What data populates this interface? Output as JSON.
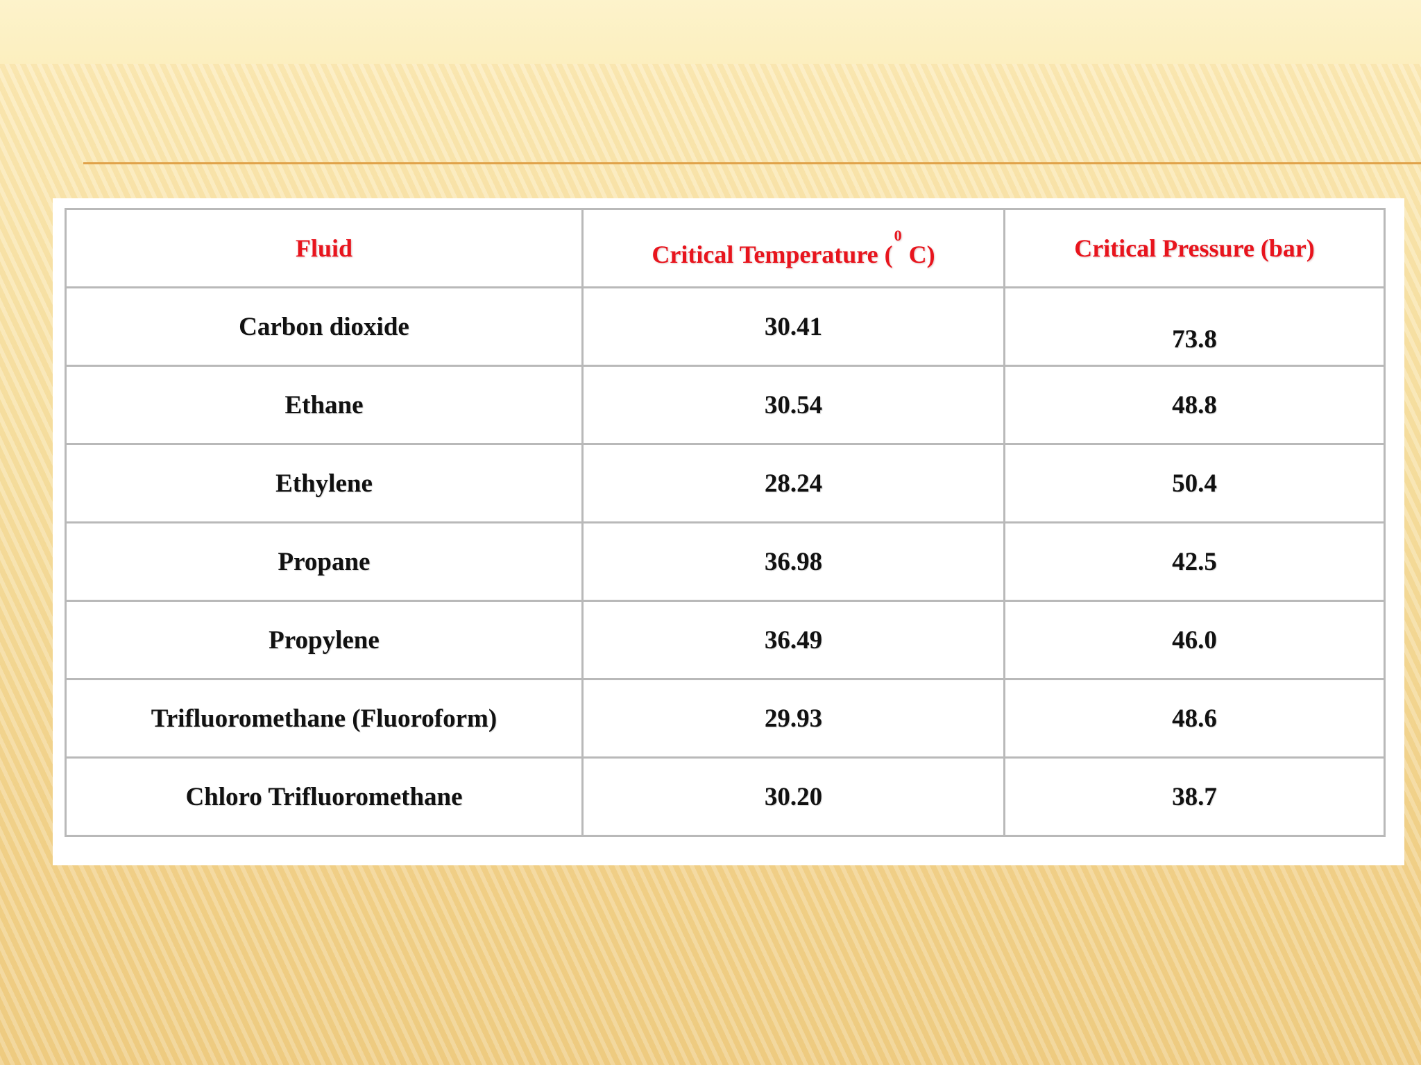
{
  "table": {
    "headers": {
      "fluid": "Fluid",
      "critical_temperature_prefix": "Critical Temperature (",
      "degree_symbol": "0",
      "critical_temperature_suffix": "C)",
      "critical_pressure": "Critical Pressure (bar)"
    },
    "rows": [
      {
        "fluid": "Carbon dioxide",
        "temperature": "30.41",
        "pressure": "73.8"
      },
      {
        "fluid": "Ethane",
        "temperature": "30.54",
        "pressure": "48.8"
      },
      {
        "fluid": "Ethylene",
        "temperature": "28.24",
        "pressure": "50.4"
      },
      {
        "fluid": "Propane",
        "temperature": "36.98",
        "pressure": "42.5"
      },
      {
        "fluid": "Propylene",
        "temperature": "36.49",
        "pressure": "46.0"
      },
      {
        "fluid": "Trifluoromethane (Fluoroform)",
        "temperature": "29.93",
        "pressure": "48.6"
      },
      {
        "fluid": "Chloro Trifluoromethane",
        "temperature": "30.20",
        "pressure": "38.7"
      }
    ]
  },
  "colors": {
    "header_text": "#e8141d",
    "rule": "#e0a24a",
    "border": "#b9b9b9"
  }
}
